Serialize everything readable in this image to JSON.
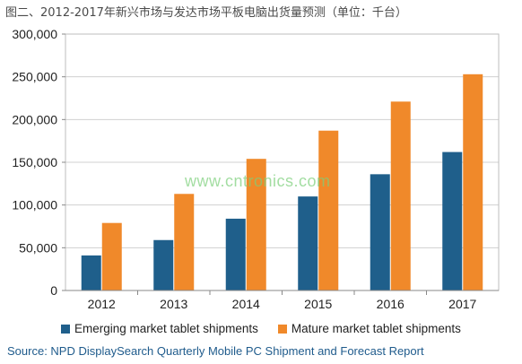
{
  "chart_data": {
    "type": "bar",
    "title": "图二、2012-2017年新兴市场与发达市场平板电脑出货量预测（单位：千台）",
    "categories": [
      "2012",
      "2013",
      "2014",
      "2015",
      "2016",
      "2017"
    ],
    "series": [
      {
        "name": "Emerging market tablet shipments",
        "color": "#1f5f8b",
        "values": [
          41000,
          59000,
          84000,
          110000,
          136000,
          162000
        ]
      },
      {
        "name": "Mature market tablet shipments",
        "color": "#f0892a",
        "values": [
          79000,
          113000,
          154000,
          187000,
          221000,
          253000
        ]
      }
    ],
    "y_ticks": [
      "0",
      "50,000",
      "100,000",
      "150,000",
      "200,000",
      "250,000",
      "300,000"
    ],
    "ylim": [
      0,
      300000
    ],
    "grid": true,
    "legend": "bottom",
    "source": "Source: NPD DisplaySearch Quarterly Mobile PC Shipment and Forecast Report",
    "watermark": "www.cntronics.com"
  }
}
